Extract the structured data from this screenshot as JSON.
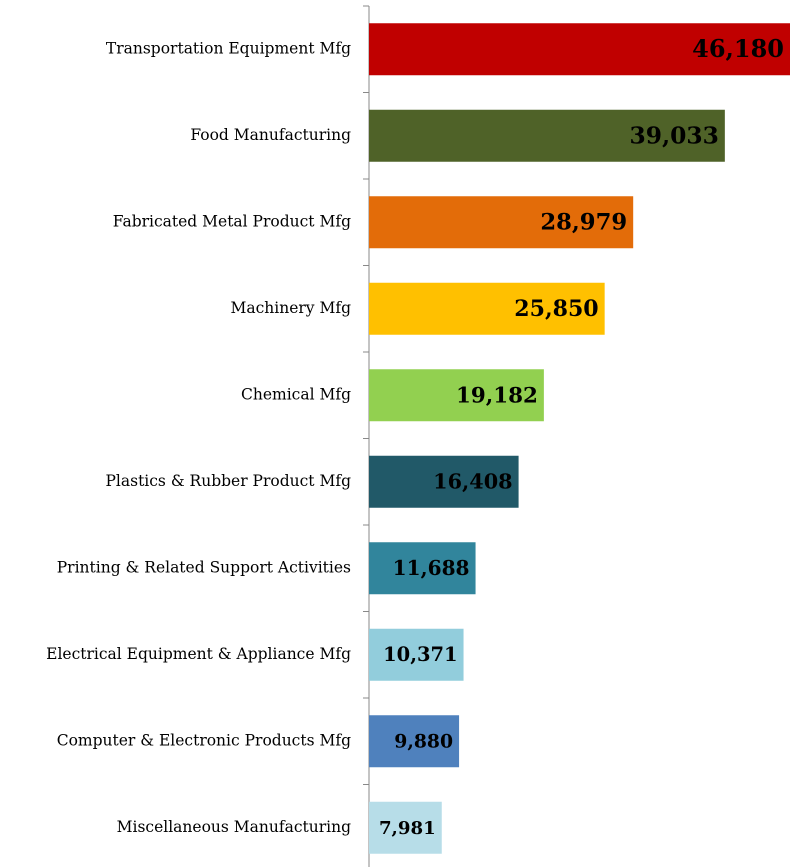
{
  "chart_data": {
    "type": "bar",
    "orientation": "horizontal",
    "categories": [
      "Transportation Equipment Mfg",
      "Food Manufacturing",
      "Fabricated Metal Product Mfg",
      "Machinery Mfg",
      "Chemical Mfg",
      "Plastics & Rubber Product Mfg",
      "Printing & Related Support Activities",
      "Electrical Equipment & Appliance Mfg",
      "Computer & Electronic Products Mfg",
      "Miscellaneous Manufacturing"
    ],
    "values": [
      46180,
      39033,
      28979,
      25850,
      19182,
      16408,
      11688,
      10371,
      9880,
      7981
    ],
    "value_labels": [
      "46,180",
      "39,033",
      "28,979",
      "25,850",
      "19,182",
      "16,408",
      "11,688",
      "10,371",
      "9,880",
      "7,981"
    ],
    "colors": [
      "#c00000",
      "#4f6228",
      "#e36c09",
      "#ffc000",
      "#92d050",
      "#215968",
      "#31859c",
      "#92cddc",
      "#4f81bd",
      "#b7dde8"
    ]
  }
}
